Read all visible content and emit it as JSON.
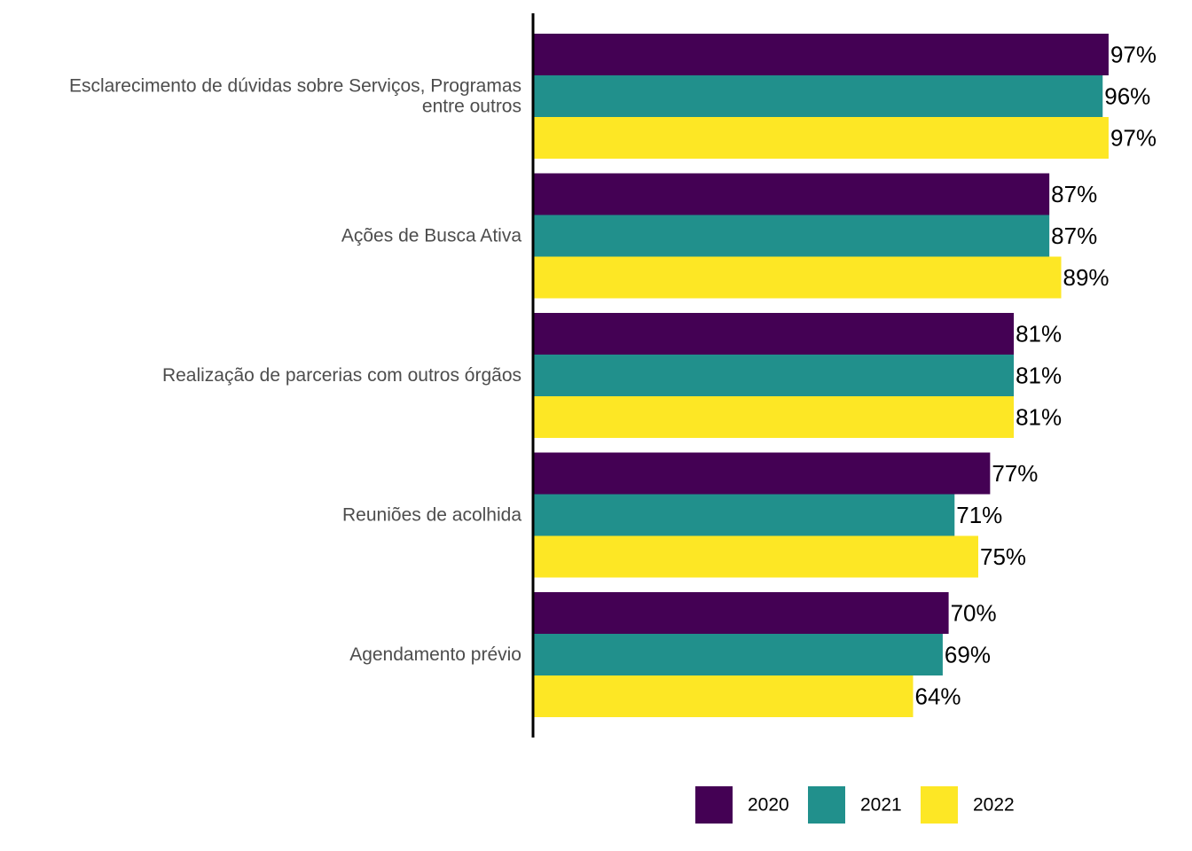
{
  "chart_data": {
    "type": "bar",
    "orientation": "horizontal",
    "categories": [
      [
        "Esclarecimento de dúvidas sobre Serviços, Programas",
        "entre outros"
      ],
      [
        "Ações de Busca Ativa"
      ],
      [
        "Realização de parcerias com outros órgãos"
      ],
      [
        "Reuniões de acolhida"
      ],
      [
        "Agendamento prévio"
      ]
    ],
    "series": [
      {
        "name": "2020",
        "color": "#440154",
        "values": [
          97,
          87,
          81,
          77,
          70
        ],
        "labels": [
          "97%",
          "87%",
          "81%",
          "77%",
          "70%"
        ]
      },
      {
        "name": "2021",
        "color": "#21908C",
        "values": [
          96,
          87,
          81,
          71,
          69
        ],
        "labels": [
          "96%",
          "87%",
          "81%",
          "71%",
          "69%"
        ]
      },
      {
        "name": "2022",
        "color": "#FDE725",
        "values": [
          97,
          89,
          81,
          75,
          64
        ],
        "labels": [
          "97%",
          "89%",
          "81%",
          "75%",
          "64%"
        ]
      }
    ],
    "xlim": [
      0,
      100
    ],
    "grid": false,
    "legend_position": "bottom",
    "title": "",
    "xlabel": "",
    "ylabel": ""
  }
}
